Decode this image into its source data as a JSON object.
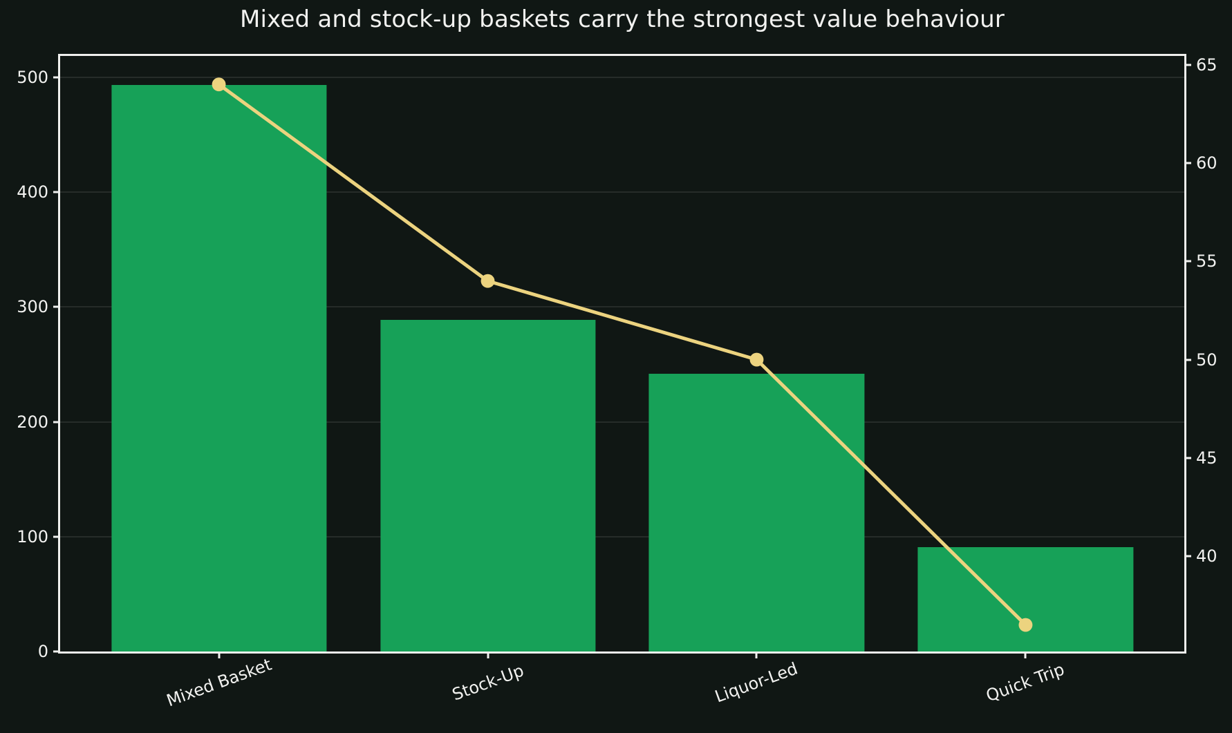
{
  "title": "Mixed and stock-up baskets carry the strongest value behaviour",
  "colors": {
    "background": "#101714",
    "bar": "#17a158",
    "line": "#ecd37f",
    "text": "#f2f2f0",
    "spine": "#f0f0ee",
    "grid": "rgba(240,240,240,0.10)"
  },
  "chart_data": {
    "type": "combo_bar_line",
    "title": "Mixed and stock-up baskets carry the strongest value behaviour",
    "categories": [
      "Mixed Basket",
      "Stock-Up",
      "Liquor-Led",
      "Quick Trip"
    ],
    "series": [
      {
        "name": "bars",
        "type": "bar",
        "axis": "left",
        "values": [
          493,
          289,
          242,
          91
        ]
      },
      {
        "name": "line",
        "type": "line",
        "axis": "right",
        "values": [
          64,
          54,
          50,
          36.5
        ]
      }
    ],
    "left_axis": {
      "ticks": [
        0,
        100,
        200,
        300,
        400,
        500
      ],
      "range": [
        0,
        518.5
      ]
    },
    "right_axis": {
      "ticks": [
        40,
        45,
        50,
        55,
        60,
        65
      ],
      "range": [
        35.15,
        65.45
      ]
    },
    "x_range": [
      -0.59,
      3.59
    ],
    "bar_width": 0.8,
    "grid": "horizontal gridlines at left-axis ticks",
    "legend": "none",
    "x_label_rotation_deg": 20,
    "xlabel": "",
    "ylabel_left": "",
    "ylabel_right": ""
  }
}
